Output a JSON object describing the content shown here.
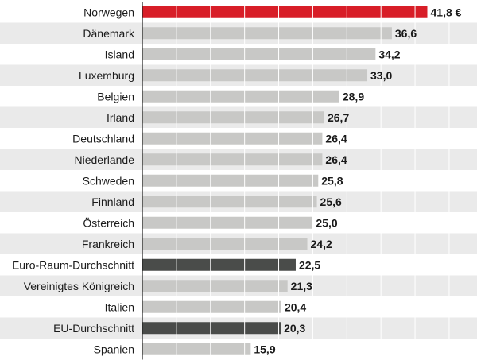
{
  "chart_data": {
    "type": "bar",
    "orientation": "horizontal",
    "categories": [
      "Norwegen",
      "Dänemark",
      "Island",
      "Luxemburg",
      "Belgien",
      "Irland",
      "Deutschland",
      "Niederlande",
      "Schweden",
      "Finnland",
      "Österreich",
      "Frankreich",
      "Euro-Raum-Durchschnitt",
      "Vereinigtes Königreich",
      "Italien",
      "EU-Durchschnitt",
      "Spanien"
    ],
    "values": [
      41.8,
      36.6,
      34.2,
      33.0,
      28.9,
      26.7,
      26.4,
      26.4,
      25.8,
      25.6,
      25.0,
      24.2,
      22.5,
      21.3,
      20.4,
      20.3,
      15.9
    ],
    "value_labels": [
      "41,8 €",
      "36,6",
      "34,2",
      "33,0",
      "28,9",
      "26,7",
      "26,4",
      "26,4",
      "25,8",
      "25,6",
      "25,0",
      "24,2",
      "22,5",
      "21,3",
      "20,4",
      "20,3",
      "15,9"
    ],
    "bar_roles": [
      "highlight",
      "normal",
      "normal",
      "normal",
      "normal",
      "normal",
      "normal",
      "normal",
      "normal",
      "normal",
      "normal",
      "normal",
      "average",
      "normal",
      "normal",
      "average",
      "normal"
    ],
    "colors": {
      "highlight": "#d81e28",
      "normal": "#c8c8c6",
      "average": "#4a4c4a",
      "stripe": "#eaeaea",
      "text": "#1a1a1a",
      "gridline": "#ffffff",
      "axis": "#1a1a1a"
    },
    "xlim": [
      0,
      45
    ],
    "grid": true,
    "title": "",
    "xlabel": "",
    "ylabel": ""
  }
}
